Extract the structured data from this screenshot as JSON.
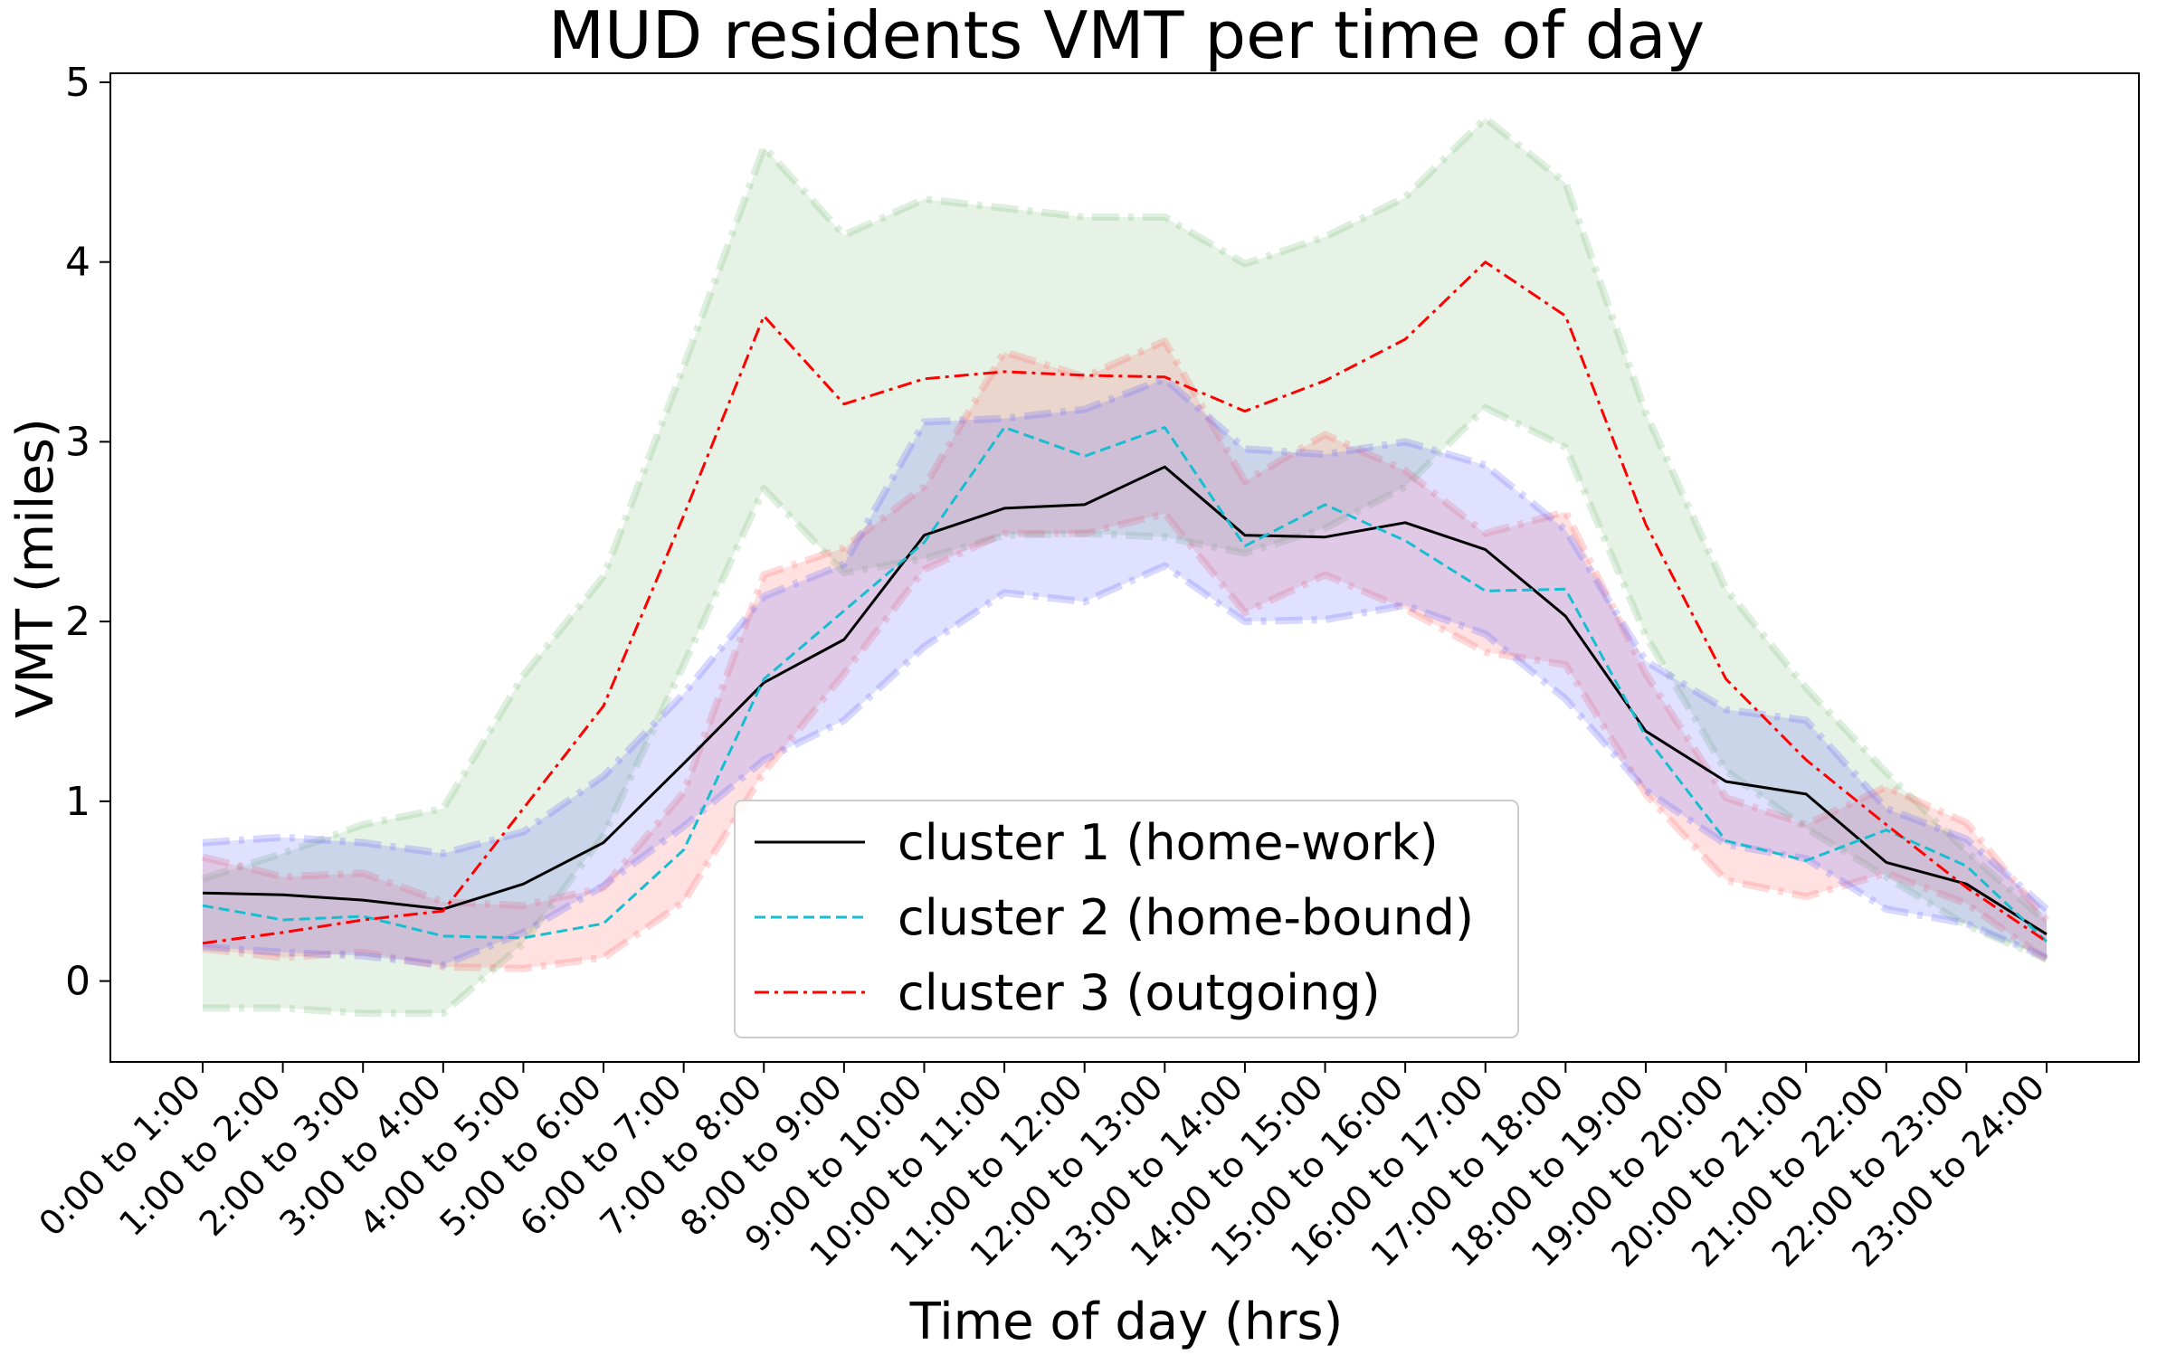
{
  "chart_data": {
    "type": "line",
    "title": "MUD residents VMT per time of day",
    "xlabel": "Time of day (hrs)",
    "ylabel": "VMT (miles)",
    "ylim": [
      -0.45,
      5.05
    ],
    "yticks": [
      0,
      1,
      2,
      3,
      4,
      5
    ],
    "grid": false,
    "legend_position": "bottom-center",
    "categories": [
      "0:00 to 1:00",
      "1:00 to 2:00",
      "2:00 to 3:00",
      "3:00 to 4:00",
      "4:00 to 5:00",
      "5:00 to 6:00",
      "6:00 to 7:00",
      "7:00 to 8:00",
      "8:00 to 9:00",
      "9:00 to 10:00",
      "10:00 to 11:00",
      "11:00 to 12:00",
      "12:00 to 13:00",
      "13:00 to 14:00",
      "14:00 to 15:00",
      "15:00 to 16:00",
      "16:00 to 17:00",
      "17:00 to 18:00",
      "18:00 to 19:00",
      "19:00 to 20:00",
      "20:00 to 21:00",
      "21:00 to 22:00",
      "22:00 to 23:00",
      "23:00 to 24:00"
    ],
    "series": [
      {
        "name": "cluster 1 (home-work)",
        "color": "#000000",
        "dash": "solid",
        "band_color": "#6666ff",
        "values": [
          0.49,
          0.48,
          0.45,
          0.4,
          0.54,
          0.77,
          1.21,
          1.66,
          1.9,
          2.48,
          2.63,
          2.65,
          2.86,
          2.48,
          2.47,
          2.55,
          2.4,
          2.03,
          1.39,
          1.11,
          1.04,
          0.66,
          0.54,
          0.26
        ],
        "lower": [
          0.19,
          0.16,
          0.14,
          0.09,
          0.27,
          0.53,
          0.86,
          1.23,
          1.45,
          1.86,
          2.16,
          2.11,
          2.31,
          2.0,
          2.01,
          2.09,
          1.93,
          1.57,
          1.06,
          0.76,
          0.68,
          0.4,
          0.32,
          0.13
        ],
        "upper": [
          0.77,
          0.8,
          0.77,
          0.71,
          0.83,
          1.14,
          1.6,
          2.14,
          2.32,
          3.11,
          3.13,
          3.18,
          3.35,
          2.96,
          2.93,
          3.0,
          2.87,
          2.51,
          1.78,
          1.51,
          1.45,
          0.96,
          0.79,
          0.4
        ]
      },
      {
        "name": "cluster 2 (home-bound)",
        "color": "#17becf",
        "dash": "dashed",
        "band_color": "#ff6b6b",
        "values": [
          0.42,
          0.34,
          0.36,
          0.25,
          0.24,
          0.32,
          0.73,
          1.68,
          2.06,
          2.44,
          3.08,
          2.92,
          3.08,
          2.42,
          2.65,
          2.45,
          2.17,
          2.18,
          1.36,
          0.78,
          0.67,
          0.84,
          0.64,
          0.22
        ],
        "lower": [
          0.18,
          0.13,
          0.16,
          0.08,
          0.07,
          0.13,
          0.44,
          1.16,
          1.71,
          2.29,
          2.49,
          2.49,
          2.6,
          2.05,
          2.26,
          2.07,
          1.83,
          1.76,
          1.04,
          0.56,
          0.47,
          0.6,
          0.43,
          0.12
        ],
        "upper": [
          0.69,
          0.58,
          0.6,
          0.44,
          0.42,
          0.52,
          1.05,
          2.26,
          2.41,
          2.75,
          3.5,
          3.36,
          3.56,
          2.78,
          3.04,
          2.84,
          2.49,
          2.61,
          1.71,
          1.02,
          0.87,
          1.08,
          0.88,
          0.34
        ]
      },
      {
        "name": "cluster 3 (outgoing)",
        "color": "#ff0000",
        "dash": "dashdot",
        "band_color": "#7fbf7f",
        "values": [
          0.21,
          0.27,
          0.34,
          0.39,
          0.96,
          1.53,
          2.59,
          3.7,
          3.21,
          3.35,
          3.39,
          3.37,
          3.36,
          3.17,
          3.34,
          3.57,
          4.0,
          3.7,
          2.54,
          1.68,
          1.23,
          0.87,
          0.52,
          0.22
        ],
        "lower": [
          -0.15,
          -0.15,
          -0.18,
          -0.18,
          0.21,
          0.81,
          1.76,
          2.74,
          2.27,
          2.35,
          2.48,
          2.49,
          2.47,
          2.38,
          2.52,
          2.75,
          3.19,
          2.97,
          1.92,
          1.17,
          0.85,
          0.58,
          0.31,
          0.12
        ],
        "upper": [
          0.57,
          0.71,
          0.87,
          0.96,
          1.7,
          2.25,
          3.42,
          4.64,
          4.15,
          4.35,
          4.3,
          4.25,
          4.25,
          3.99,
          4.14,
          4.36,
          4.8,
          4.44,
          3.16,
          2.18,
          1.63,
          1.16,
          0.72,
          0.33
        ]
      }
    ]
  }
}
